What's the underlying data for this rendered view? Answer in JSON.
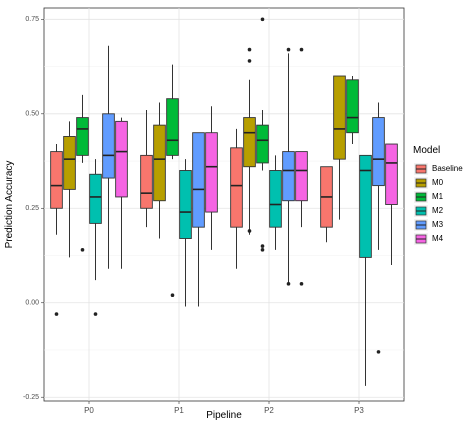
{
  "chart_data": {
    "type": "boxplot",
    "xlabel": "Pipeline",
    "ylabel": "Prediction Accuracy",
    "categories": [
      "P0",
      "P1",
      "P2",
      "P3"
    ],
    "ylim": [
      -0.26,
      0.78
    ],
    "yticks": [
      0.75,
      0.5,
      0.25,
      0.0,
      -0.25
    ],
    "ytick_labels": [
      "0.75",
      "0.50",
      "0.25",
      "0.00",
      "-0.25"
    ],
    "grid": true,
    "legend": {
      "title": "Model",
      "position": "right"
    },
    "series": [
      {
        "name": "Baseline",
        "color": "#F8766D",
        "boxes": [
          {
            "min": 0.18,
            "q1": 0.25,
            "median": 0.31,
            "q3": 0.4,
            "max": 0.42,
            "outliers": [
              -0.03
            ]
          },
          {
            "min": 0.2,
            "q1": 0.25,
            "median": 0.29,
            "q3": 0.39,
            "max": 0.51,
            "outliers": []
          },
          {
            "min": 0.09,
            "q1": 0.2,
            "median": 0.31,
            "q3": 0.41,
            "max": 0.46,
            "outliers": []
          },
          {
            "min": 0.16,
            "q1": 0.2,
            "median": 0.28,
            "q3": 0.36,
            "max": 0.36,
            "outliers": []
          }
        ]
      },
      {
        "name": "M0",
        "color": "#B79F00",
        "boxes": [
          {
            "min": 0.12,
            "q1": 0.3,
            "median": 0.38,
            "q3": 0.44,
            "max": 0.48,
            "outliers": []
          },
          {
            "min": 0.17,
            "q1": 0.27,
            "median": 0.38,
            "q3": 0.47,
            "max": 0.53,
            "outliers": []
          },
          {
            "min": 0.18,
            "q1": 0.36,
            "median": 0.45,
            "q3": 0.49,
            "max": 0.59,
            "outliers": [
              0.19,
              0.67,
              0.64
            ]
          },
          {
            "min": 0.22,
            "q1": 0.38,
            "median": 0.46,
            "q3": 0.6,
            "max": 0.6,
            "outliers": []
          }
        ]
      },
      {
        "name": "M1",
        "color": "#00BA38",
        "boxes": [
          {
            "min": 0.37,
            "q1": 0.39,
            "median": 0.46,
            "q3": 0.49,
            "max": 0.55,
            "outliers": [
              0.14
            ]
          },
          {
            "min": 0.38,
            "q1": 0.39,
            "median": 0.43,
            "q3": 0.54,
            "max": 0.63,
            "outliers": [
              0.02
            ]
          },
          {
            "min": 0.35,
            "q1": 0.37,
            "median": 0.43,
            "q3": 0.47,
            "max": 0.51,
            "outliers": [
              0.75,
              0.15,
              0.14
            ]
          },
          {
            "min": 0.42,
            "q1": 0.45,
            "median": 0.49,
            "q3": 0.59,
            "max": 0.6,
            "outliers": []
          }
        ]
      },
      {
        "name": "M2",
        "color": "#00C0AF",
        "boxes": [
          {
            "min": 0.06,
            "q1": 0.21,
            "median": 0.28,
            "q3": 0.34,
            "max": 0.38,
            "outliers": [
              -0.03
            ]
          },
          {
            "min": -0.01,
            "q1": 0.17,
            "median": 0.24,
            "q3": 0.35,
            "max": 0.38,
            "outliers": []
          },
          {
            "min": 0.14,
            "q1": 0.2,
            "median": 0.26,
            "q3": 0.35,
            "max": 0.39,
            "outliers": []
          },
          {
            "min": -0.22,
            "q1": 0.12,
            "median": 0.35,
            "q3": 0.39,
            "max": 0.39,
            "outliers": []
          }
        ]
      },
      {
        "name": "M3",
        "color": "#619CFF",
        "boxes": [
          {
            "min": 0.09,
            "q1": 0.33,
            "median": 0.39,
            "q3": 0.5,
            "max": 0.68,
            "outliers": []
          },
          {
            "min": -0.01,
            "q1": 0.2,
            "median": 0.3,
            "q3": 0.45,
            "max": 0.45,
            "outliers": []
          },
          {
            "min": 0.05,
            "q1": 0.27,
            "median": 0.35,
            "q3": 0.4,
            "max": 0.66,
            "outliers": [
              0.67,
              0.05
            ]
          },
          {
            "min": 0.14,
            "q1": 0.31,
            "median": 0.38,
            "q3": 0.49,
            "max": 0.53,
            "outliers": [
              -0.13
            ]
          }
        ]
      },
      {
        "name": "M4",
        "color": "#F564E3",
        "boxes": [
          {
            "min": 0.09,
            "q1": 0.28,
            "median": 0.4,
            "q3": 0.48,
            "max": 0.49,
            "outliers": []
          },
          {
            "min": 0.14,
            "q1": 0.24,
            "median": 0.36,
            "q3": 0.45,
            "max": 0.52,
            "outliers": []
          },
          {
            "min": 0.2,
            "q1": 0.27,
            "median": 0.35,
            "q3": 0.4,
            "max": 0.4,
            "outliers": [
              0.67,
              0.05
            ]
          },
          {
            "min": 0.1,
            "q1": 0.26,
            "median": 0.37,
            "q3": 0.42,
            "max": 0.42,
            "outliers": []
          }
        ]
      }
    ]
  }
}
